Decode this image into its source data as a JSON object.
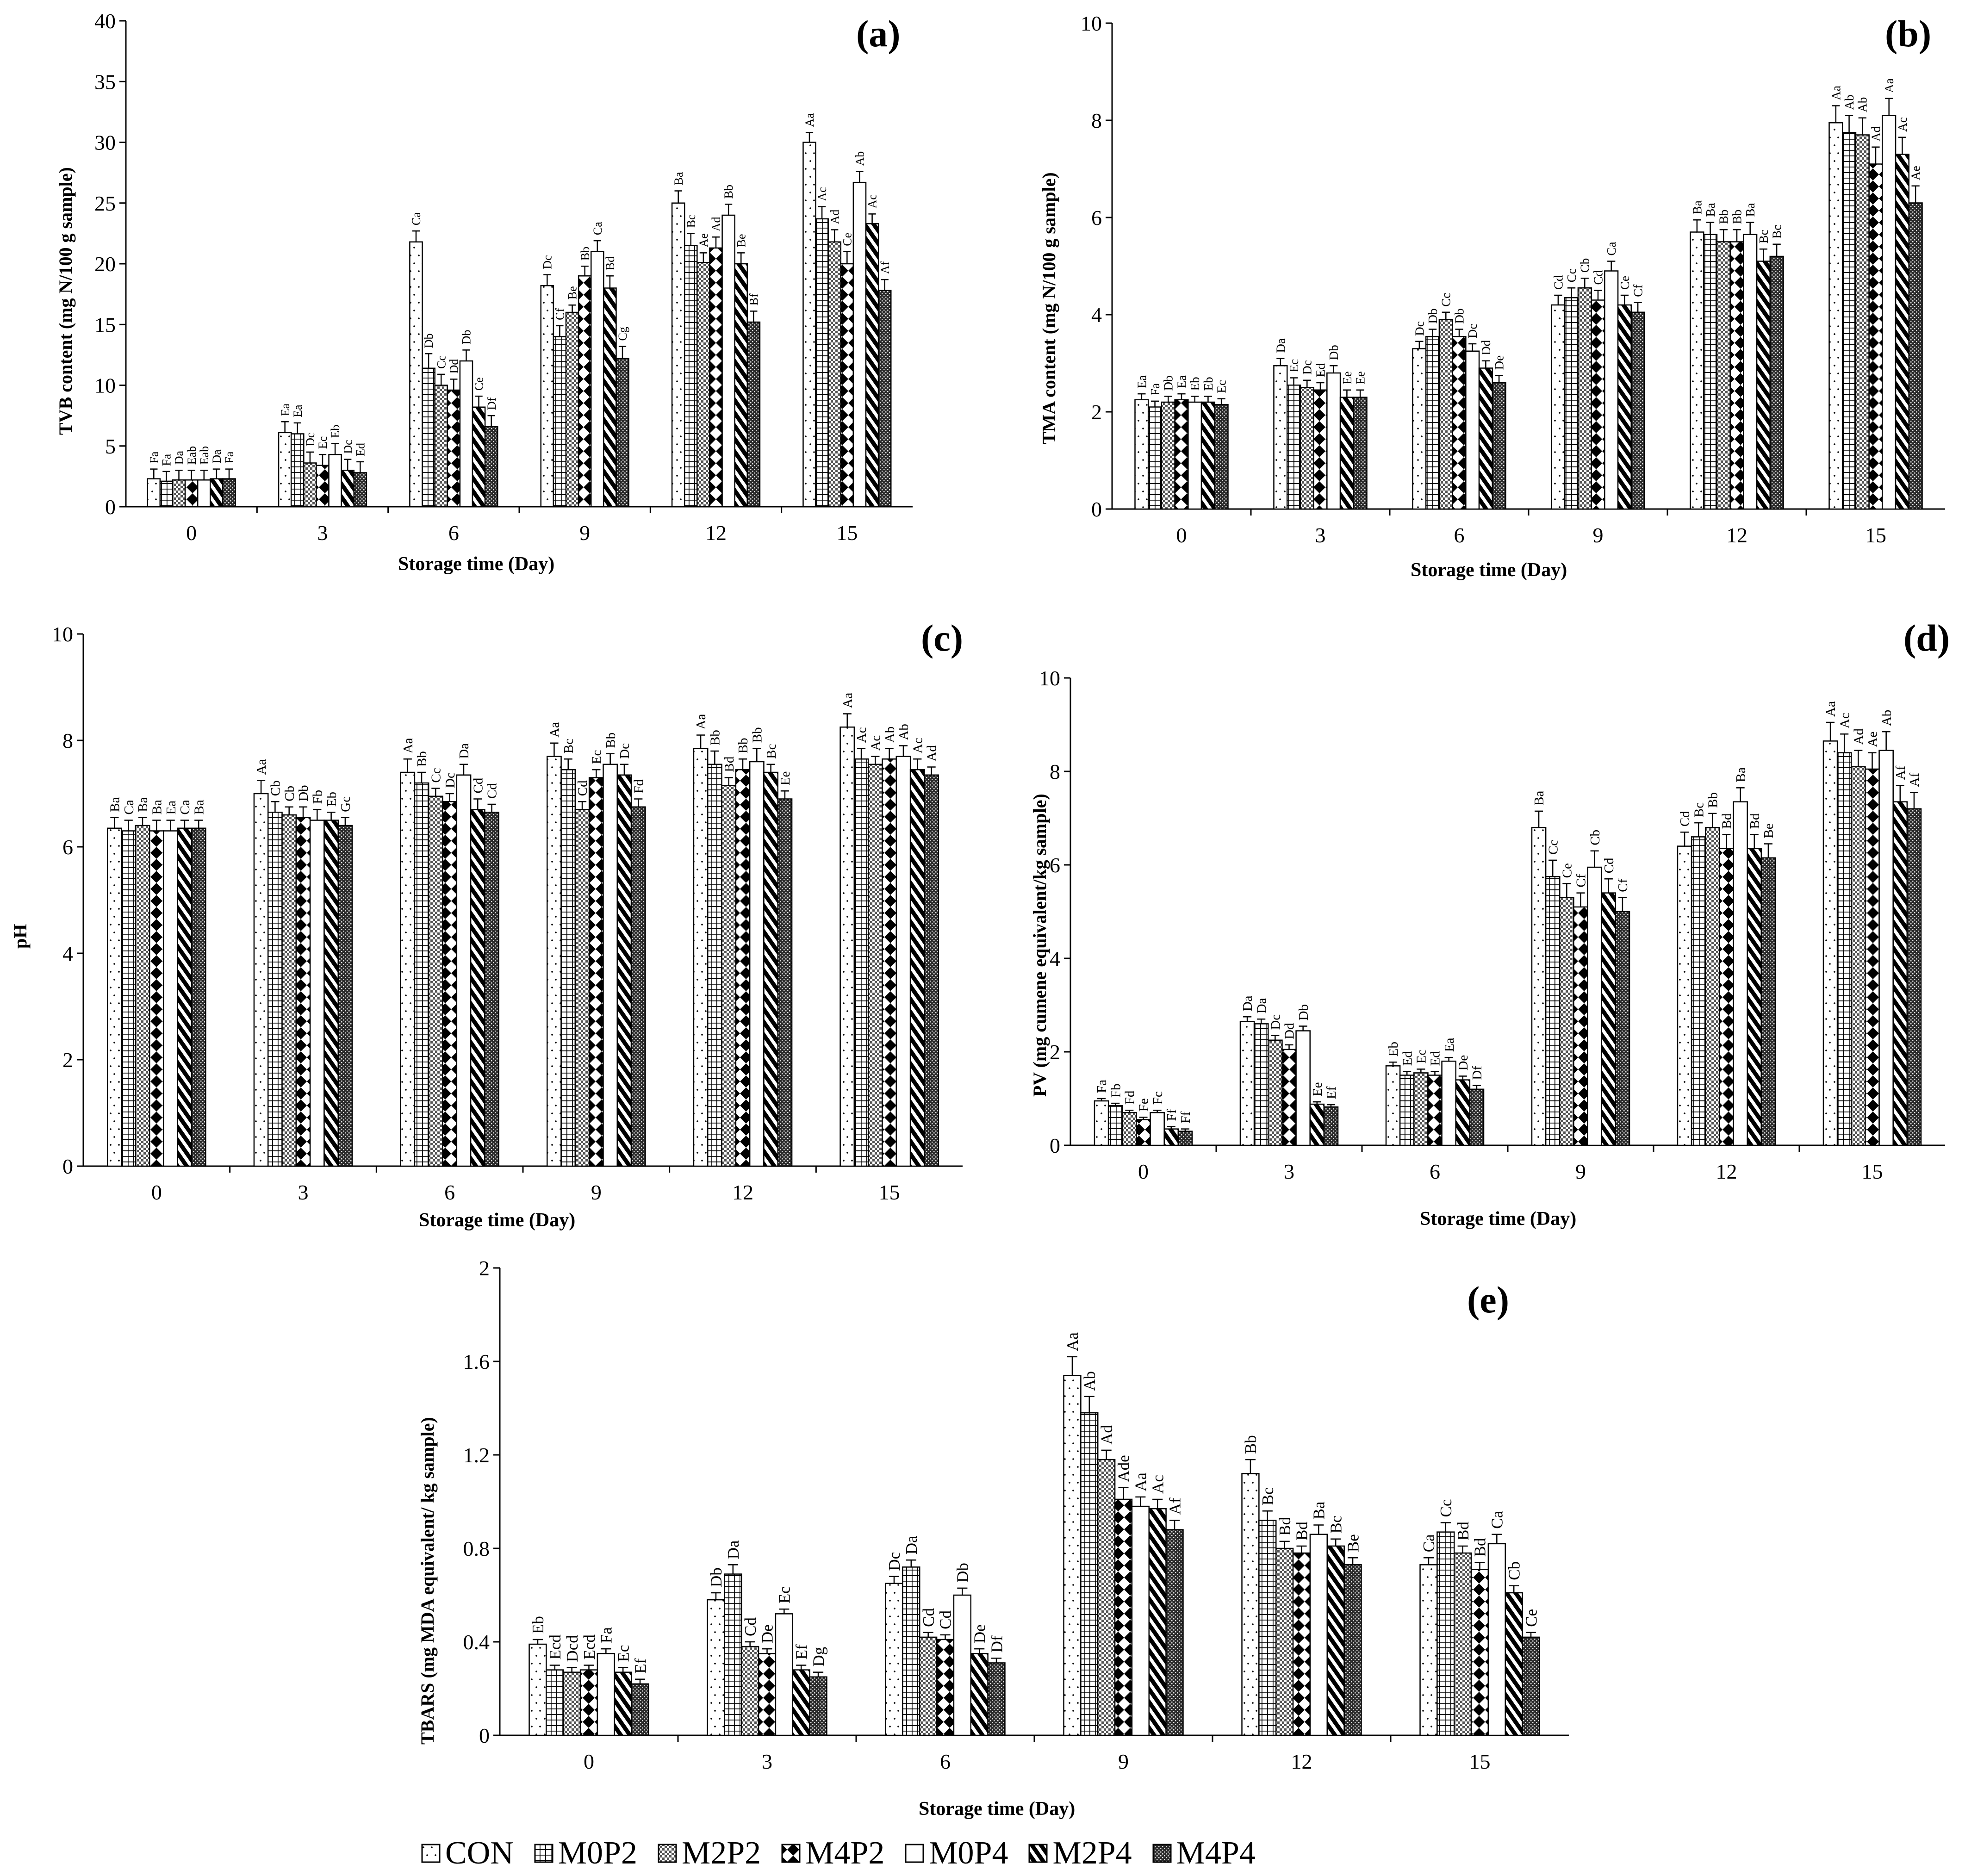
{
  "legend": {
    "items": [
      {
        "name": "CON",
        "pattern": "dots"
      },
      {
        "name": "M0P2",
        "pattern": "grid"
      },
      {
        "name": "M2P2",
        "pattern": "checker"
      },
      {
        "name": "M4P2",
        "pattern": "zigzag"
      },
      {
        "name": "M0P4",
        "pattern": "blank"
      },
      {
        "name": "M2P4",
        "pattern": "diag"
      },
      {
        "name": "M4P4",
        "pattern": "dense"
      }
    ]
  },
  "chart_data": [
    {
      "id": "a",
      "type": "bar",
      "panel_label": "(a)",
      "ylabel": "TVB content (mg N/100 g sample)",
      "xlabel": "Storage time (Day)",
      "ylim": [
        0,
        40
      ],
      "yticks": [
        0,
        5,
        10,
        15,
        20,
        25,
        30,
        35,
        40
      ],
      "categories": [
        "0",
        "3",
        "6",
        "9",
        "12",
        "15"
      ],
      "series": [
        {
          "name": "CON",
          "values": [
            2.3,
            6.1,
            21.8,
            18.2,
            25.0,
            30.0
          ],
          "errors": [
            0.8,
            0.9,
            0.9,
            0.9,
            1.0,
            0.8
          ],
          "labels": [
            "Fa",
            "Ea",
            "Ca",
            "Dc",
            "Ba",
            "Aa"
          ]
        },
        {
          "name": "M0P2",
          "values": [
            2.1,
            6.0,
            11.4,
            14.0,
            21.5,
            23.7
          ],
          "errors": [
            0.8,
            0.9,
            1.2,
            0.9,
            1.0,
            1.0
          ],
          "labels": [
            "Fa",
            "Ea",
            "Db",
            "Cf",
            "Bc",
            "Ac"
          ]
        },
        {
          "name": "M2P2",
          "values": [
            2.2,
            3.6,
            10.0,
            16.0,
            20.1,
            21.8
          ],
          "errors": [
            0.8,
            0.9,
            0.9,
            0.6,
            0.8,
            1.0
          ],
          "labels": [
            "Da",
            "Dc",
            "Cc",
            "Be",
            "Ae",
            "Ad"
          ]
        },
        {
          "name": "M4P2",
          "values": [
            2.2,
            3.4,
            9.6,
            19.0,
            21.3,
            20.0
          ],
          "errors": [
            0.8,
            0.9,
            0.9,
            0.8,
            0.9,
            1.0
          ],
          "labels": [
            "Eab",
            "Ec",
            "Dd",
            "Bb",
            "Ad",
            "Ce"
          ]
        },
        {
          "name": "M0P4",
          "values": [
            2.2,
            4.3,
            12.0,
            21.0,
            24.0,
            26.7
          ],
          "errors": [
            0.8,
            0.9,
            0.9,
            0.9,
            0.9,
            0.9
          ],
          "labels": [
            "Eab",
            "Eb",
            "Db",
            "Ca",
            "Bb",
            "Ab"
          ]
        },
        {
          "name": "M2P4",
          "values": [
            2.3,
            3.0,
            8.2,
            18.0,
            20.0,
            23.3
          ],
          "errors": [
            0.8,
            0.9,
            0.9,
            1.0,
            0.9,
            0.8
          ],
          "labels": [
            "Da",
            "Dc",
            "Ce",
            "Bd",
            "Be",
            "Ac"
          ]
        },
        {
          "name": "M4P4",
          "values": [
            2.3,
            2.8,
            6.6,
            12.2,
            15.2,
            17.8
          ],
          "errors": [
            0.8,
            0.9,
            0.9,
            1.0,
            0.9,
            0.9
          ],
          "labels": [
            "Fa",
            "Ed",
            "Df",
            "Cg",
            "Bf",
            "Af"
          ]
        }
      ]
    },
    {
      "id": "b",
      "type": "bar",
      "panel_label": "(b)",
      "ylabel": "TMA content (mg N/100 g sample)",
      "xlabel": "Storage time (Day)",
      "ylim": [
        0,
        10
      ],
      "yticks": [
        0,
        2,
        4,
        6,
        8,
        10
      ],
      "categories": [
        "0",
        "3",
        "6",
        "9",
        "12",
        "15"
      ],
      "series": [
        {
          "name": "CON",
          "values": [
            2.25,
            2.95,
            3.3,
            4.2,
            5.7,
            7.95
          ],
          "errors": [
            0.12,
            0.15,
            0.15,
            0.2,
            0.25,
            0.35
          ],
          "labels": [
            "Ea",
            "Da",
            "Dc",
            "Cd",
            "Ba",
            "Aa"
          ]
        },
        {
          "name": "M0P2",
          "values": [
            2.1,
            2.55,
            3.55,
            4.35,
            5.65,
            7.75
          ],
          "errors": [
            0.12,
            0.15,
            0.15,
            0.2,
            0.25,
            0.35
          ],
          "labels": [
            "Fa",
            "Ec",
            "Db",
            "Cc",
            "Ba",
            "Ab"
          ]
        },
        {
          "name": "M2P2",
          "values": [
            2.2,
            2.5,
            3.9,
            4.55,
            5.5,
            7.7
          ],
          "errors": [
            0.12,
            0.15,
            0.15,
            0.2,
            0.25,
            0.35
          ],
          "labels": [
            "Db",
            "Dc",
            "Cc",
            "Cb",
            "Bb",
            "Ab"
          ]
        },
        {
          "name": "M4P2",
          "values": [
            2.25,
            2.45,
            3.55,
            4.3,
            5.5,
            7.1
          ],
          "errors": [
            0.12,
            0.15,
            0.15,
            0.2,
            0.25,
            0.35
          ],
          "labels": [
            "Ea",
            "Ed",
            "Db",
            "Cd",
            "Bb",
            "Ad"
          ]
        },
        {
          "name": "M0P4",
          "values": [
            2.2,
            2.8,
            3.25,
            4.9,
            5.65,
            8.1
          ],
          "errors": [
            0.12,
            0.15,
            0.15,
            0.2,
            0.25,
            0.35
          ],
          "labels": [
            "Eb",
            "Db",
            "Dc",
            "Ca",
            "Ba",
            "Aa"
          ]
        },
        {
          "name": "M2P4",
          "values": [
            2.2,
            2.3,
            2.9,
            4.2,
            5.1,
            7.3
          ],
          "errors": [
            0.12,
            0.15,
            0.15,
            0.2,
            0.25,
            0.35
          ],
          "labels": [
            "Eb",
            "Ee",
            "Dd",
            "Ce",
            "Bc",
            "Ac"
          ]
        },
        {
          "name": "M4P4",
          "values": [
            2.15,
            2.3,
            2.6,
            4.05,
            5.2,
            6.3
          ],
          "errors": [
            0.12,
            0.15,
            0.15,
            0.2,
            0.25,
            0.35
          ],
          "labels": [
            "Ec",
            "Ee",
            "De",
            "Cf",
            "Bc",
            "Ae"
          ]
        }
      ]
    },
    {
      "id": "c",
      "type": "bar",
      "panel_label": "(c)",
      "ylabel": "pH",
      "xlabel": "Storage time (Day)",
      "ylim": [
        0,
        10
      ],
      "yticks": [
        0,
        2,
        4,
        6,
        8,
        10
      ],
      "categories": [
        "0",
        "3",
        "6",
        "9",
        "12",
        "15"
      ],
      "series": [
        {
          "name": "CON",
          "values": [
            6.35,
            7.0,
            7.4,
            7.7,
            7.85,
            8.25
          ],
          "errors": [
            0.2,
            0.25,
            0.25,
            0.25,
            0.25,
            0.25
          ],
          "labels": [
            "Ba",
            "Aa",
            "Aa",
            "Aa",
            "Aa",
            "Aa"
          ]
        },
        {
          "name": "M0P2",
          "values": [
            6.3,
            6.65,
            7.2,
            7.45,
            7.55,
            7.65
          ],
          "errors": [
            0.2,
            0.2,
            0.2,
            0.2,
            0.25,
            0.2
          ],
          "labels": [
            "Ca",
            "Cb",
            "Bb",
            "Bc",
            "Bb",
            "Ac"
          ]
        },
        {
          "name": "M2P2",
          "values": [
            6.4,
            6.6,
            6.95,
            6.7,
            7.15,
            7.55
          ],
          "errors": [
            0.15,
            0.15,
            0.15,
            0.15,
            0.15,
            0.15
          ],
          "labels": [
            "Ba",
            "Cb",
            "Cc",
            "Cd",
            "Bd",
            "Ac"
          ]
        },
        {
          "name": "M4P2",
          "values": [
            6.3,
            6.55,
            6.85,
            7.3,
            7.45,
            7.65
          ],
          "errors": [
            0.2,
            0.2,
            0.15,
            0.15,
            0.2,
            0.2
          ],
          "labels": [
            "Ba",
            "Db",
            "Dc",
            "Ec",
            "Bb",
            "Ab"
          ]
        },
        {
          "name": "M0P4",
          "values": [
            6.3,
            6.5,
            7.35,
            7.55,
            7.6,
            7.7
          ],
          "errors": [
            0.2,
            0.2,
            0.2,
            0.2,
            0.25,
            0.2
          ],
          "labels": [
            "Ea",
            "Fb",
            "Da",
            "Bb",
            "Bb",
            "Ab"
          ]
        },
        {
          "name": "M2P4",
          "values": [
            6.35,
            6.5,
            6.7,
            7.35,
            7.4,
            7.45
          ],
          "errors": [
            0.15,
            0.15,
            0.2,
            0.2,
            0.15,
            0.2
          ],
          "labels": [
            "Ca",
            "Eb",
            "Cd",
            "Dc",
            "Bc",
            "Ac"
          ]
        },
        {
          "name": "M4P4",
          "values": [
            6.35,
            6.4,
            6.65,
            6.75,
            6.9,
            7.35
          ],
          "errors": [
            0.15,
            0.15,
            0.15,
            0.15,
            0.15,
            0.15
          ],
          "labels": [
            "Ba",
            "Gc",
            "Cd",
            "Fd",
            "Ee",
            "Ad"
          ]
        }
      ]
    },
    {
      "id": "d",
      "type": "bar",
      "panel_label": "(d)",
      "ylabel": "PV (mg cumene equivalent/kg sample)",
      "xlabel": "Storage time (Day)",
      "ylim": [
        0,
        10
      ],
      "yticks": [
        0,
        2,
        4,
        6,
        8,
        10
      ],
      "categories": [
        "0",
        "3",
        "6",
        "9",
        "12",
        "15"
      ],
      "series": [
        {
          "name": "CON",
          "values": [
            0.95,
            2.65,
            1.7,
            6.8,
            6.4,
            8.65
          ],
          "errors": [
            0.05,
            0.1,
            0.08,
            0.35,
            0.3,
            0.4
          ],
          "labels": [
            "Fa",
            "Da",
            "Eb",
            "Ba",
            "Cd",
            "Aa"
          ]
        },
        {
          "name": "M0P2",
          "values": [
            0.85,
            2.6,
            1.5,
            5.75,
            6.6,
            8.4
          ],
          "errors": [
            0.05,
            0.1,
            0.08,
            0.35,
            0.3,
            0.4
          ],
          "labels": [
            "Fb",
            "Da",
            "Ed",
            "Cc",
            "Bc",
            "Ac"
          ]
        },
        {
          "name": "M2P2",
          "values": [
            0.7,
            2.25,
            1.55,
            5.3,
            6.8,
            8.1
          ],
          "errors": [
            0.05,
            0.1,
            0.08,
            0.3,
            0.3,
            0.35
          ],
          "labels": [
            "Fd",
            "Dc",
            "Ec",
            "Ce",
            "Bb",
            "Ad"
          ]
        },
        {
          "name": "M4P2",
          "values": [
            0.55,
            2.05,
            1.5,
            5.1,
            6.35,
            8.05
          ],
          "errors": [
            0.05,
            0.1,
            0.08,
            0.3,
            0.3,
            0.35
          ],
          "labels": [
            "Fe",
            "Dd",
            "Ed",
            "Cf",
            "Bd",
            "Ae"
          ]
        },
        {
          "name": "M0P4",
          "values": [
            0.7,
            2.45,
            1.8,
            5.95,
            7.35,
            8.45
          ],
          "errors": [
            0.05,
            0.1,
            0.08,
            0.35,
            0.3,
            0.4
          ],
          "labels": [
            "Fc",
            "Db",
            "Ea",
            "Cb",
            "Ba",
            "Ab"
          ]
        },
        {
          "name": "M2P4",
          "values": [
            0.35,
            0.88,
            1.4,
            5.4,
            6.35,
            7.35
          ],
          "errors": [
            0.05,
            0.05,
            0.08,
            0.3,
            0.3,
            0.35
          ],
          "labels": [
            "Ff",
            "Ee",
            "De",
            "Cd",
            "Bd",
            "Af"
          ]
        },
        {
          "name": "M4P4",
          "values": [
            0.3,
            0.82,
            1.2,
            5.0,
            6.15,
            7.2
          ],
          "errors": [
            0.05,
            0.05,
            0.08,
            0.3,
            0.3,
            0.35
          ],
          "labels": [
            "Ff",
            "Ef",
            "Df",
            "Cf",
            "Be",
            "Af"
          ]
        }
      ]
    },
    {
      "id": "e",
      "type": "bar",
      "panel_label": "(e)",
      "ylabel": "TBARS (mg MDA equivalent/ kg sample)",
      "xlabel": "Storage time (Day)",
      "ylim": [
        0,
        2
      ],
      "yticks": [
        "0",
        "0.4",
        "0.8",
        "1.2",
        "1.6",
        "2"
      ],
      "categories": [
        "0",
        "3",
        "6",
        "9",
        "12",
        "15"
      ],
      "series": [
        {
          "name": "CON",
          "values": [
            0.39,
            0.58,
            0.65,
            1.54,
            1.12,
            0.73
          ],
          "errors": [
            0.02,
            0.03,
            0.03,
            0.08,
            0.06,
            0.03
          ],
          "labels": [
            "Eb",
            "Db",
            "Dc",
            "Aa",
            "Bb",
            "Ca"
          ]
        },
        {
          "name": "M0P2",
          "values": [
            0.28,
            0.69,
            0.72,
            1.38,
            0.92,
            0.87
          ],
          "errors": [
            0.02,
            0.04,
            0.03,
            0.07,
            0.04,
            0.04
          ],
          "labels": [
            "Ecd",
            "Da",
            "Da",
            "Ab",
            "Bc",
            "Cc"
          ]
        },
        {
          "name": "M2P2",
          "values": [
            0.27,
            0.38,
            0.42,
            1.18,
            0.8,
            0.78
          ],
          "errors": [
            0.02,
            0.02,
            0.02,
            0.04,
            0.03,
            0.03
          ],
          "labels": [
            "Dcd",
            "Cd",
            "Cd",
            "Ad",
            "Bd",
            "Bd"
          ]
        },
        {
          "name": "M4P2",
          "values": [
            0.28,
            0.35,
            0.41,
            1.01,
            0.78,
            0.71
          ],
          "errors": [
            0.02,
            0.02,
            0.02,
            0.05,
            0.03,
            0.03
          ],
          "labels": [
            "Ecd",
            "De",
            "Cd",
            "Ade",
            "Bd",
            "Bd"
          ]
        },
        {
          "name": "M0P4",
          "values": [
            0.35,
            0.52,
            0.6,
            0.98,
            0.86,
            0.82
          ],
          "errors": [
            0.02,
            0.02,
            0.03,
            0.04,
            0.04,
            0.04
          ],
          "labels": [
            "Fa",
            "Ec",
            "Db",
            "Aa",
            "Ba",
            "Ca"
          ]
        },
        {
          "name": "M2P4",
          "values": [
            0.27,
            0.28,
            0.35,
            0.97,
            0.81,
            0.61
          ],
          "errors": [
            0.02,
            0.02,
            0.02,
            0.04,
            0.03,
            0.03
          ],
          "labels": [
            "Ec",
            "Ef",
            "De",
            "Ac",
            "Bc",
            "Cb"
          ]
        },
        {
          "name": "M4P4",
          "values": [
            0.22,
            0.25,
            0.31,
            0.88,
            0.73,
            0.42
          ],
          "errors": [
            0.02,
            0.02,
            0.02,
            0.04,
            0.03,
            0.02
          ],
          "labels": [
            "Ef",
            "Dg",
            "Df",
            "Af",
            "Be",
            "Ce"
          ]
        }
      ]
    }
  ]
}
